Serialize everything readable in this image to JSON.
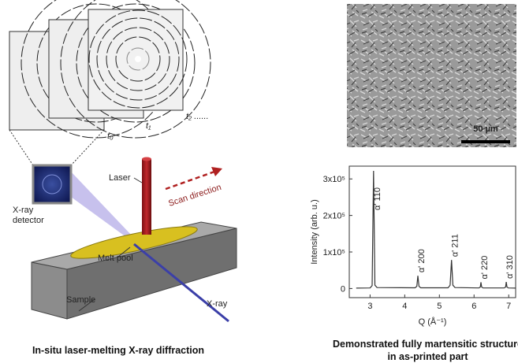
{
  "diagram": {
    "frames": [
      "t₀",
      "t₁",
      "t₂ ......"
    ],
    "laser": "Laser",
    "scan": "Scan direction",
    "detector": "X-ray detector",
    "melt_pool": "Melt pool",
    "sample": "Sample",
    "xray": "X-ray",
    "caption": "In-situ laser-melting X-ray diffraction"
  },
  "micrograph": {
    "scale_bar": "50 µm",
    "caption": "Demonstrated fully martensitic structure in as-printed part"
  },
  "chart_data": {
    "type": "line",
    "ylabel": "Intensity (arb. u.)",
    "xlabel": "Q (Å⁻¹)",
    "x": [
      2.6,
      3.0,
      3.06,
      3.1,
      3.14,
      3.2,
      4.3,
      4.35,
      4.38,
      4.41,
      4.46,
      5.25,
      5.31,
      5.35,
      5.39,
      5.45,
      6.14,
      6.18,
      6.2,
      6.22,
      6.26,
      6.87,
      6.91,
      6.93,
      6.95,
      6.99,
      7.2
    ],
    "values": [
      1000,
      1500,
      8000,
      322000,
      9000,
      2500,
      2000,
      6000,
      35000,
      6000,
      2000,
      2000,
      9000,
      78000,
      9000,
      2500,
      1500,
      4000,
      17000,
      4000,
      1500,
      1500,
      4000,
      18000,
      4000,
      1500,
      1000
    ],
    "color": "#333333",
    "annotations": [
      "α' 110",
      "α' 200",
      "α' 211",
      "α' 220",
      "α' 310"
    ],
    "xlim": [
      2.4,
      7.2
    ],
    "xticks": [
      3,
      4,
      5,
      6,
      7
    ],
    "ylim": [
      -25000,
      335000
    ],
    "yticks": [
      0,
      {
        "value": 100000,
        "label": "1x10⁵"
      },
      {
        "value": 200000,
        "label": "2x10⁵"
      },
      {
        "value": 300000,
        "label": "3x10⁵"
      }
    ]
  }
}
